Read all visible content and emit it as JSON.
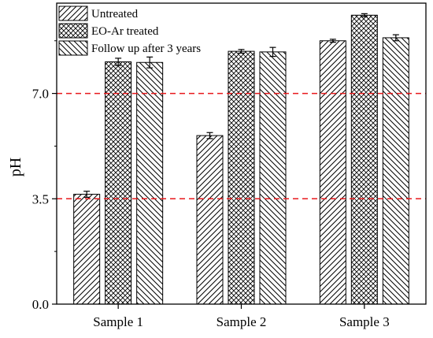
{
  "chart_data": {
    "type": "bar",
    "title": "",
    "xlabel": "",
    "ylabel": "pH",
    "ylim": [
      0,
      10
    ],
    "y_ticks": [
      "0.0",
      "3.5",
      "7.0"
    ],
    "y_tick_values": [
      0,
      3.5,
      7.0
    ],
    "categories": [
      "Sample 1",
      "Sample 2",
      "Sample 3"
    ],
    "series": [
      {
        "name": "Untreated",
        "pattern": "diagonal-forward",
        "values": [
          3.65,
          5.6,
          8.75
        ],
        "errors": [
          0.1,
          0.1,
          0.05
        ]
      },
      {
        "name": "EO-Ar treated",
        "pattern": "crosshatch",
        "values": [
          8.05,
          8.4,
          9.6
        ],
        "errors": [
          0.12,
          0.06,
          0.05
        ]
      },
      {
        "name": "Follow up after 3 years",
        "pattern": "diagonal-back",
        "values": [
          8.03,
          8.38,
          8.85
        ],
        "errors": [
          0.18,
          0.15,
          0.1
        ]
      }
    ],
    "reference_lines": [
      {
        "y": 7.0,
        "color": "#e8191c",
        "style": "dashed"
      },
      {
        "y": 3.5,
        "color": "#e8191c",
        "style": "dashed"
      }
    ],
    "legend_position": "top-left",
    "grid": false
  }
}
